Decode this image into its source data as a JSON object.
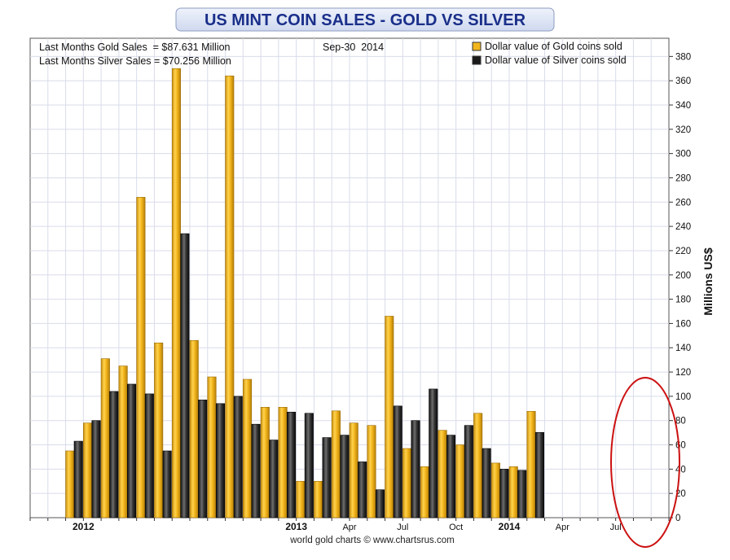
{
  "title": "US MINT COIN SALES - GOLD VS SILVER",
  "info": {
    "gold_line": "Last Months Gold Sales  = $87.631 Million",
    "silver_line": "Last Months Silver Sales = $70.256 Million",
    "date": "Sep-30  2014"
  },
  "legend": {
    "gold": "Dollar value of Gold coins sold",
    "silver": "Dollar value of Silver coins sold"
  },
  "ylabel": "Millions US$",
  "credit": "world gold charts © www.chartsrus.com",
  "colors": {
    "gold": "#f2b51c",
    "silver": "#2a2a2a",
    "title_bg": "#dfe6f5",
    "title_text": "#1a2f8a",
    "circle": "#cc1111"
  },
  "chart_data": {
    "type": "bar",
    "x_tick_labels": [
      "2012",
      "2013",
      "Apr",
      "Jul",
      "Oct",
      "2014",
      "Apr",
      "Jul"
    ],
    "x_tick_months": [
      "2012-01",
      "2013-01",
      "2013-04",
      "2013-07",
      "2013-10",
      "2014-01",
      "2014-04",
      "2014-07"
    ],
    "months": [
      "2011-10",
      "2011-11",
      "2011-12",
      "2012-01",
      "2012-02",
      "2012-03",
      "2012-04",
      "2012-05",
      "2012-06",
      "2012-07",
      "2012-08",
      "2012-09",
      "2012-10",
      "2012-11",
      "2012-12",
      "2013-01",
      "2013-02",
      "2013-03",
      "2013-04",
      "2013-05",
      "2013-06",
      "2013-07",
      "2013-08",
      "2013-09",
      "2013-10",
      "2013-11",
      "2013-12",
      "2014-01",
      "2014-02",
      "2014-03",
      "2014-04",
      "2014-05",
      "2014-06",
      "2014-07",
      "2014-08",
      "2014-09"
    ],
    "series": [
      {
        "name": "Dollar value of Gold coins sold",
        "values": [
          55,
          78,
          131,
          125,
          264,
          144,
          370,
          146,
          116,
          364,
          114,
          91,
          91,
          30,
          30,
          88,
          78,
          76,
          166,
          57,
          42,
          72,
          60,
          86,
          45,
          42,
          87.631
        ]
      },
      {
        "name": "Dollar value of Silver coins sold",
        "values": [
          63,
          80,
          104,
          110,
          102,
          55,
          234,
          97,
          94,
          100,
          77,
          64,
          87,
          86,
          66,
          68,
          46,
          23,
          92,
          80,
          106,
          68,
          76,
          57,
          40,
          39,
          70.256
        ]
      }
    ],
    "bar_months": [
      "2011-12",
      "2012-01",
      "2012-02",
      "2012-03",
      "2012-04",
      "2012-05",
      "2012-06",
      "2012-07",
      "2012-08",
      "2012-09",
      "2012-10",
      "2012-11",
      "2012-12",
      "2013-01",
      "2013-02",
      "2013-03",
      "2013-04",
      "2013-05",
      "2013-06",
      "2013-07",
      "2013-08",
      "2013-09",
      "2013-10",
      "2013-11",
      "2013-12",
      "2014-01",
      "2014-02"
    ],
    "y_ticks": [
      0,
      20,
      40,
      60,
      80,
      100,
      120,
      140,
      160,
      180,
      200,
      220,
      240,
      260,
      280,
      300,
      320,
      340,
      360,
      380
    ],
    "ylim": [
      0,
      395
    ],
    "grid": true,
    "legend_position": "top-right",
    "annotation": "red ellipse around latest month"
  }
}
